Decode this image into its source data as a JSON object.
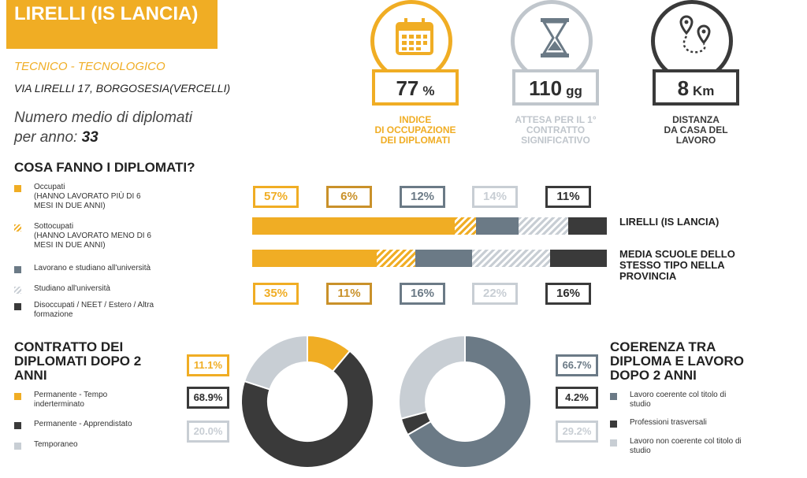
{
  "school": {
    "name": "LIRELLI (IS LANCIA)",
    "type": "TECNICO - TECNOLOGICO",
    "address": "VIA LIRELLI 17, BORGOSESIA(VERCELLI)",
    "graduates_label_1": "Numero medio di diplomati",
    "graduates_label_2": "per anno:",
    "graduates_value": "33"
  },
  "kpis": [
    {
      "value": "77",
      "unit": "%",
      "label": [
        "INDICE",
        "DI OCCUPAZIONE",
        "DEI DIPLOMATI"
      ],
      "color": "#f0ad24",
      "icon": "calendar-icon"
    },
    {
      "value": "110",
      "unit": "gg",
      "label": [
        "ATTESA PER IL 1°",
        "CONTRATTO",
        "SIGNIFICATIVO"
      ],
      "color": "#c0c6cc",
      "icon": "hourglass-icon"
    },
    {
      "value": "8",
      "unit": "Km",
      "label": [
        "DISTANZA",
        "DA CASA DEL",
        "LAVORO"
      ],
      "color": "#3a3a3a",
      "icon": "route-pins-icon"
    }
  ],
  "section1": {
    "title": "COSA FANNO I DIPLOMATI?",
    "legend": [
      {
        "label": "Occupati\n(HANNO LAVORATO PIÙ DI 6\nMESI IN DUE ANNI)",
        "style": "occ"
      },
      {
        "label": "Sottocupati\n(HANNO LAVORATO MENO DI 6\nMESI IN DUE ANNI)",
        "style": "sotto"
      },
      {
        "label": "Lavorano e studiano all'università",
        "style": "uni-lav"
      },
      {
        "label": "Studiano all'università",
        "style": "uni"
      },
      {
        "label": "Disoccupati / NEET / Estero / Altra\nformazione",
        "style": "dis"
      }
    ]
  },
  "section2": {
    "title": "CONTRATTO DEI DIPLOMATI DOPO 2 ANNI",
    "legend": [
      "Permanente - Tempo\ninderterminato",
      "Permanente - Apprendistato",
      "Temporaneo"
    ]
  },
  "section3": {
    "title": "COERENZA TRA DIPLOMA E LAVORO DOPO 2 ANNI",
    "legend": [
      "Lavoro coerente col titolo di\nstudio",
      "Professioni trasversali",
      "Lavoro non coerente col titolo di\nstudio"
    ]
  },
  "colors": {
    "occupati": "#f0ad24",
    "lav_studio": "#6b7a86",
    "studio": "#c8ced4",
    "disoccupati": "#3a3a3a"
  },
  "chart_data": [
    {
      "type": "bar",
      "stacked": true,
      "orientation": "horizontal",
      "categories": [
        "LIRELLI (IS LANCIA)",
        "MEDIA SCUOLE DELLO STESSO TIPO NELLA PROVINCIA"
      ],
      "series": [
        {
          "name": "Occupati",
          "values": [
            57,
            35
          ],
          "labels": [
            "57%",
            "35%"
          ],
          "color": "#f0ad24"
        },
        {
          "name": "Sottocupati",
          "values": [
            6,
            11
          ],
          "labels": [
            "6%",
            "11%"
          ],
          "color": "#c9912a"
        },
        {
          "name": "Lavorano e studiano all'università",
          "values": [
            12,
            16
          ],
          "labels": [
            "12%",
            "16%"
          ],
          "color": "#6b7a86"
        },
        {
          "name": "Studiano all'università",
          "values": [
            14,
            22
          ],
          "labels": [
            "14%",
            "22%"
          ],
          "color": "#c8ced4"
        },
        {
          "name": "Disoccupati / NEET / Estero / Altra formazione",
          "values": [
            11,
            16
          ],
          "labels": [
            "11%",
            "16%"
          ],
          "color": "#3a3a3a"
        }
      ]
    },
    {
      "type": "pie",
      "donut": true,
      "categories": [
        "Permanente - Tempo inderterminato",
        "Permanente - Apprendistato",
        "Temporaneo"
      ],
      "values": [
        11.1,
        68.9,
        20.0
      ],
      "labels": [
        "11.1%",
        "68.9%",
        "20.0%"
      ],
      "colors": [
        "#f0ad24",
        "#3a3a3a",
        "#c8ced4"
      ]
    },
    {
      "type": "pie",
      "donut": true,
      "categories": [
        "Lavoro coerente col titolo di studio",
        "Professioni trasversali",
        "Lavoro non coerente col titolo di studio"
      ],
      "values": [
        66.7,
        4.2,
        29.2
      ],
      "labels": [
        "66.7%",
        "4.2%",
        "29.2%"
      ],
      "colors": [
        "#6b7a86",
        "#3a3a3a",
        "#c8ced4"
      ]
    }
  ]
}
